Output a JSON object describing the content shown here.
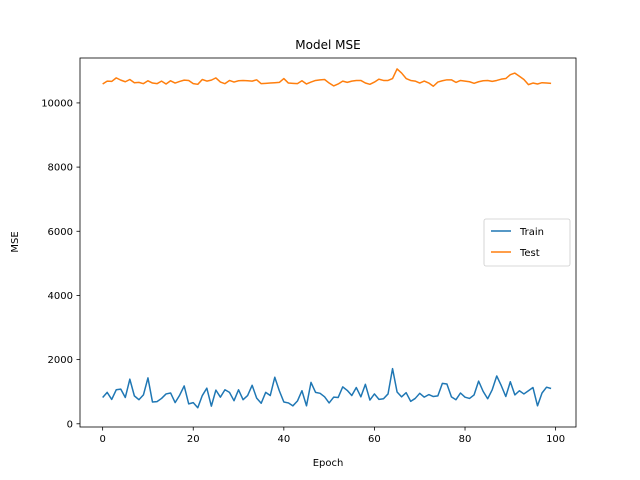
{
  "chart_data": {
    "type": "line",
    "title": "Model MSE",
    "xlabel": "Epoch",
    "ylabel": "MSE",
    "xlim": [
      -5,
      104.5
    ],
    "ylim": [
      -100,
      11400
    ],
    "xticks": [
      0,
      20,
      40,
      60,
      80,
      100
    ],
    "yticks": [
      0,
      2000,
      4000,
      6000,
      8000,
      10000
    ],
    "grid": false,
    "legend_position": "center-right",
    "series": [
      {
        "name": "Train",
        "color": "#1f77b4",
        "x": [
          0,
          1,
          2,
          3,
          4,
          5,
          6,
          7,
          8,
          9,
          10,
          11,
          12,
          13,
          14,
          15,
          16,
          17,
          18,
          19,
          20,
          21,
          22,
          23,
          24,
          25,
          26,
          27,
          28,
          29,
          30,
          31,
          32,
          33,
          34,
          35,
          36,
          37,
          38,
          39,
          40,
          41,
          42,
          43,
          44,
          45,
          46,
          47,
          48,
          49,
          50,
          51,
          52,
          53,
          54,
          55,
          56,
          57,
          58,
          59,
          60,
          61,
          62,
          63,
          64,
          65,
          66,
          67,
          68,
          69,
          70,
          71,
          72,
          73,
          74,
          75,
          76,
          77,
          78,
          79,
          80,
          81,
          82,
          83,
          84,
          85,
          86,
          87,
          88,
          89,
          90,
          91,
          92,
          93,
          94,
          95,
          96,
          97,
          98,
          99
        ],
        "values": [
          820,
          980,
          760,
          1060,
          1080,
          820,
          1390,
          870,
          750,
          900,
          1430,
          680,
          690,
          790,
          930,
          960,
          660,
          890,
          1180,
          620,
          660,
          500,
          880,
          1110,
          550,
          1050,
          830,
          1060,
          980,
          720,
          1060,
          750,
          880,
          1200,
          800,
          640,
          980,
          880,
          1450,
          1030,
          680,
          650,
          560,
          710,
          1030,
          560,
          1290,
          980,
          950,
          840,
          650,
          830,
          820,
          1150,
          1040,
          880,
          1130,
          840,
          1230,
          740,
          930,
          760,
          780,
          930,
          1720,
          990,
          840,
          970,
          700,
          790,
          950,
          830,
          910,
          850,
          870,
          1260,
          1240,
          840,
          750,
          960,
          830,
          790,
          900,
          1330,
          1010,
          780,
          1060,
          1490,
          1190,
          850,
          1310,
          900,
          1030,
          930,
          1030,
          1130,
          560,
          960,
          1140,
          1100
        ]
      },
      {
        "name": "Test",
        "color": "#ff7f0e",
        "x": [
          0,
          1,
          2,
          3,
          4,
          5,
          6,
          7,
          8,
          9,
          10,
          11,
          12,
          13,
          14,
          15,
          16,
          17,
          18,
          19,
          20,
          21,
          22,
          23,
          24,
          25,
          26,
          27,
          28,
          29,
          30,
          31,
          32,
          33,
          34,
          35,
          36,
          37,
          38,
          39,
          40,
          41,
          42,
          43,
          44,
          45,
          46,
          47,
          48,
          49,
          50,
          51,
          52,
          53,
          54,
          55,
          56,
          57,
          58,
          59,
          60,
          61,
          62,
          63,
          64,
          65,
          66,
          67,
          68,
          69,
          70,
          71,
          72,
          73,
          74,
          75,
          76,
          77,
          78,
          79,
          80,
          81,
          82,
          83,
          84,
          85,
          86,
          87,
          88,
          89,
          90,
          91,
          92,
          93,
          94,
          95,
          96,
          97,
          98,
          99
        ],
        "values": [
          10590,
          10680,
          10670,
          10780,
          10710,
          10660,
          10730,
          10630,
          10640,
          10600,
          10690,
          10620,
          10600,
          10680,
          10590,
          10690,
          10620,
          10670,
          10710,
          10700,
          10600,
          10580,
          10730,
          10680,
          10710,
          10780,
          10650,
          10600,
          10700,
          10650,
          10690,
          10700,
          10690,
          10680,
          10720,
          10600,
          10610,
          10620,
          10630,
          10640,
          10760,
          10620,
          10610,
          10600,
          10690,
          10590,
          10650,
          10700,
          10720,
          10730,
          10620,
          10530,
          10590,
          10680,
          10640,
          10680,
          10700,
          10700,
          10620,
          10580,
          10650,
          10740,
          10700,
          10700,
          10760,
          11060,
          10930,
          10760,
          10700,
          10680,
          10620,
          10680,
          10620,
          10520,
          10650,
          10690,
          10720,
          10720,
          10640,
          10700,
          10680,
          10660,
          10610,
          10660,
          10690,
          10700,
          10670,
          10700,
          10740,
          10760,
          10880,
          10930,
          10830,
          10730,
          10570,
          10620,
          10590,
          10630,
          10620,
          10610
        ]
      }
    ]
  }
}
